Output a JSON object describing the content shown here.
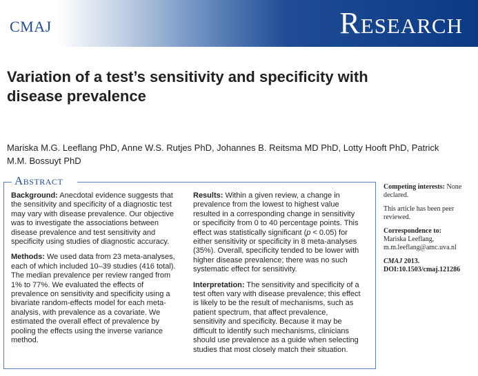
{
  "header": {
    "journal": "CMAJ",
    "section": "Research"
  },
  "article": {
    "title": "Variation of a test’s sensitivity and specificity with disease prevalence",
    "authors": "Mariska M.G. Leeflang PhD, Anne W.S. Rutjes PhD, Johannes B. Reitsma MD PhD, Lotty Hooft PhD, Patrick M.M. Bossuyt PhD"
  },
  "abstract": {
    "heading": "Abstract",
    "background_label": "Background:",
    "background_text": "Anecdotal evidence suggests that the sensitivity and specificity of a diagnostic test may vary with disease prevalence. Our objective was to investigate the associations between disease prevalence and test sensitivity and specificity using studies of diagnostic accuracy.",
    "methods_label": "Methods:",
    "methods_text": "We used data from 23 meta-analyses, each of which included 10–39 studies (416 total). The median prevalence per review ranged from 1% to 77%. We evaluated the effects of prevalence on sensitivity and specificity using a bivariate random-effects model for each meta-analysis, with prevalence as a covariate. We estimated the overall effect of prevalence by pooling the effects using the inverse variance method.",
    "results_label": "Results:",
    "results_text_1": "Within a given review, a change in prevalence from the lowest to highest value resulted in a corresponding change in sensitivity or specificity from 0 to 40 percentage points. This effect was statistically significant (",
    "results_p": "p",
    "results_text_2": " < 0.05) for either sensitivity or specificity in 8 meta-analyses (35%). Overall, specificity tended to be lower with higher disease prevalence; there was no such systematic effect for sensitivity.",
    "interpretation_label": "Interpretation:",
    "interpretation_text": "The sensitivity and specificity of a test often vary with disease prevalence; this effect is likely to be the result of mechanisms, such as patient spectrum, that affect prevalence, sensitivity and specificity. Because it may be difficult to identify such mechanisms, clinicians should use prevalence as a guide when selecting studies that most closely match their situation."
  },
  "sidebar": {
    "competing_label": "Competing interests:",
    "competing_text": "None declared.",
    "peer_review": "This article has been peer reviewed.",
    "correspondence_label": "Correspondence to:",
    "correspondence_name": "Mariska Leeflang,",
    "correspondence_email": "m.m.leeflang@amc.uva.nl",
    "citation_journal": "CMAJ",
    "citation_text": " 2013. DOI:10.1503/cmaj.121286"
  }
}
